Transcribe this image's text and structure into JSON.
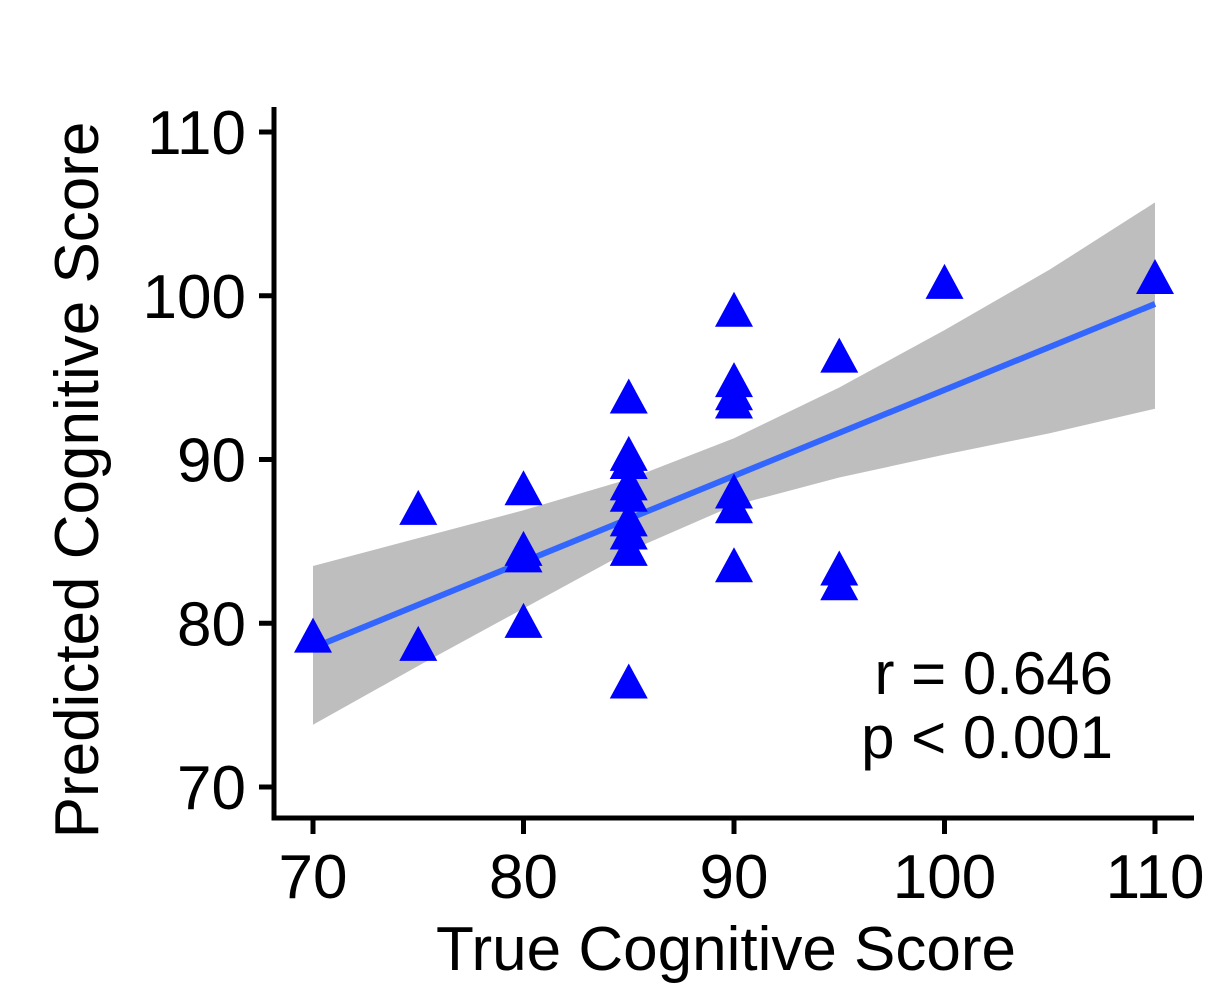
{
  "chart_data": {
    "type": "scatter",
    "title": "",
    "xlabel": "True Cognitive Score",
    "ylabel": "Predicted Cognitive Score",
    "xlim": [
      68,
      112
    ],
    "ylim": [
      68,
      111
    ],
    "xticks": [
      70,
      80,
      90,
      100,
      110
    ],
    "yticks": [
      70,
      80,
      90,
      100,
      110
    ],
    "xtick_labels": [
      "70",
      "80",
      "90",
      "100",
      "110"
    ],
    "ytick_labels": [
      "70",
      "80",
      "90",
      "100",
      "110"
    ],
    "grid": false,
    "legend": "none",
    "series": [
      {
        "marker": "triangle",
        "color": "#0000ff",
        "points": [
          {
            "x": 70,
            "y": 79.0
          },
          {
            "x": 75,
            "y": 86.8
          },
          {
            "x": 75,
            "y": 78.5
          },
          {
            "x": 80,
            "y": 88.0
          },
          {
            "x": 80,
            "y": 84.3
          },
          {
            "x": 80,
            "y": 83.9
          },
          {
            "x": 80,
            "y": 79.9
          },
          {
            "x": 85,
            "y": 93.6
          },
          {
            "x": 85,
            "y": 90.1
          },
          {
            "x": 85,
            "y": 89.6
          },
          {
            "x": 85,
            "y": 88.3
          },
          {
            "x": 85,
            "y": 87.6
          },
          {
            "x": 85,
            "y": 86.1
          },
          {
            "x": 85,
            "y": 85.3
          },
          {
            "x": 85,
            "y": 84.3
          },
          {
            "x": 85,
            "y": 76.2
          },
          {
            "x": 90,
            "y": 98.9
          },
          {
            "x": 90,
            "y": 94.6
          },
          {
            "x": 90,
            "y": 93.8
          },
          {
            "x": 90,
            "y": 93.3
          },
          {
            "x": 90,
            "y": 87.8
          },
          {
            "x": 90,
            "y": 86.9
          },
          {
            "x": 90,
            "y": 83.3
          },
          {
            "x": 95,
            "y": 96.1
          },
          {
            "x": 95,
            "y": 83.1
          },
          {
            "x": 95,
            "y": 82.2
          },
          {
            "x": 100,
            "y": 100.6
          },
          {
            "x": 110,
            "y": 100.9
          }
        ]
      }
    ],
    "regression": {
      "color": "#3366ff",
      "x": [
        70,
        110
      ],
      "y": [
        78.5,
        99.5
      ]
    },
    "confidence_band": {
      "color": "#bebebe",
      "x": [
        70,
        75,
        80,
        85,
        90,
        95,
        100,
        105,
        110
      ],
      "upper": [
        83.5,
        85.2,
        86.9,
        88.8,
        91.3,
        94.4,
        97.9,
        101.6,
        105.7
      ],
      "lower": [
        73.8,
        77.4,
        80.9,
        84.4,
        87.2,
        88.9,
        90.3,
        91.6,
        93.1
      ]
    },
    "annotations": [
      "r = 0.646",
      "p < 0.001"
    ]
  }
}
